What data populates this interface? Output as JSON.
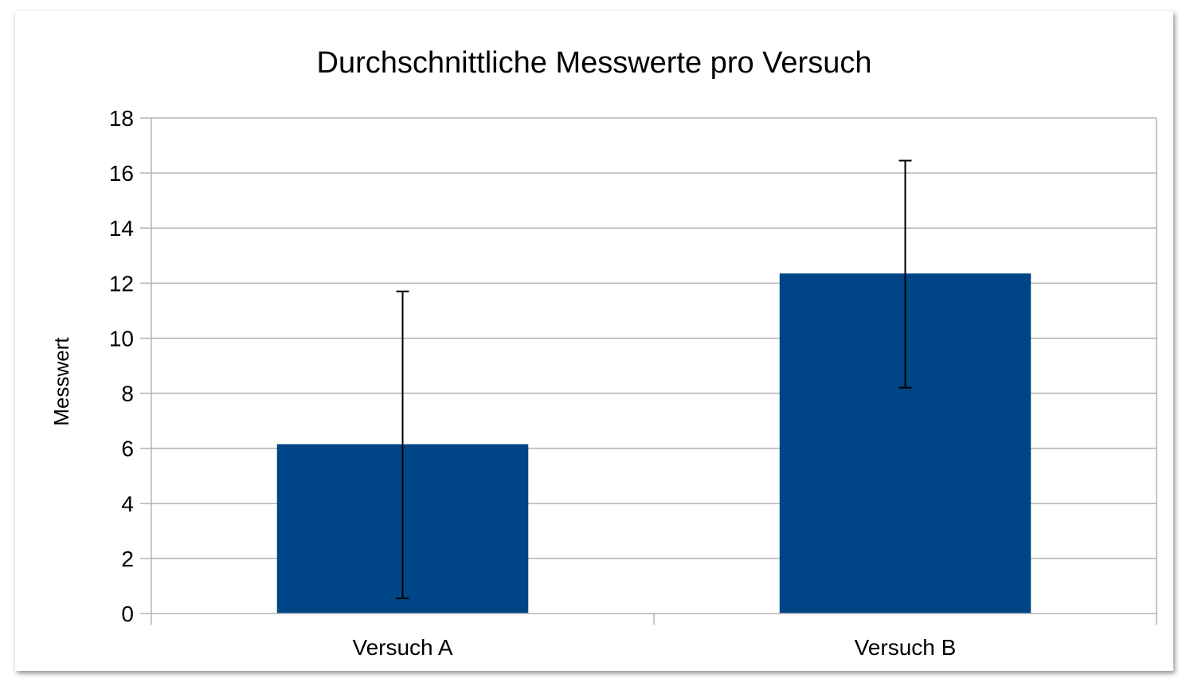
{
  "chart_data": {
    "type": "bar",
    "title": "Durchschnittliche Messwerte pro Versuch",
    "xlabel": "",
    "ylabel": "Messwert",
    "categories": [
      "Versuch A",
      "Versuch B"
    ],
    "values": [
      6.15,
      12.35
    ],
    "error_low": [
      0.55,
      8.2
    ],
    "error_high": [
      11.7,
      16.45
    ],
    "ylim": [
      0,
      18
    ],
    "yticks": [
      "0",
      "2",
      "4",
      "6",
      "8",
      "10",
      "12",
      "14",
      "16",
      "18"
    ],
    "grid": true,
    "legend": "none",
    "bar_color": "#004586",
    "error_bar_color": "#000000"
  }
}
